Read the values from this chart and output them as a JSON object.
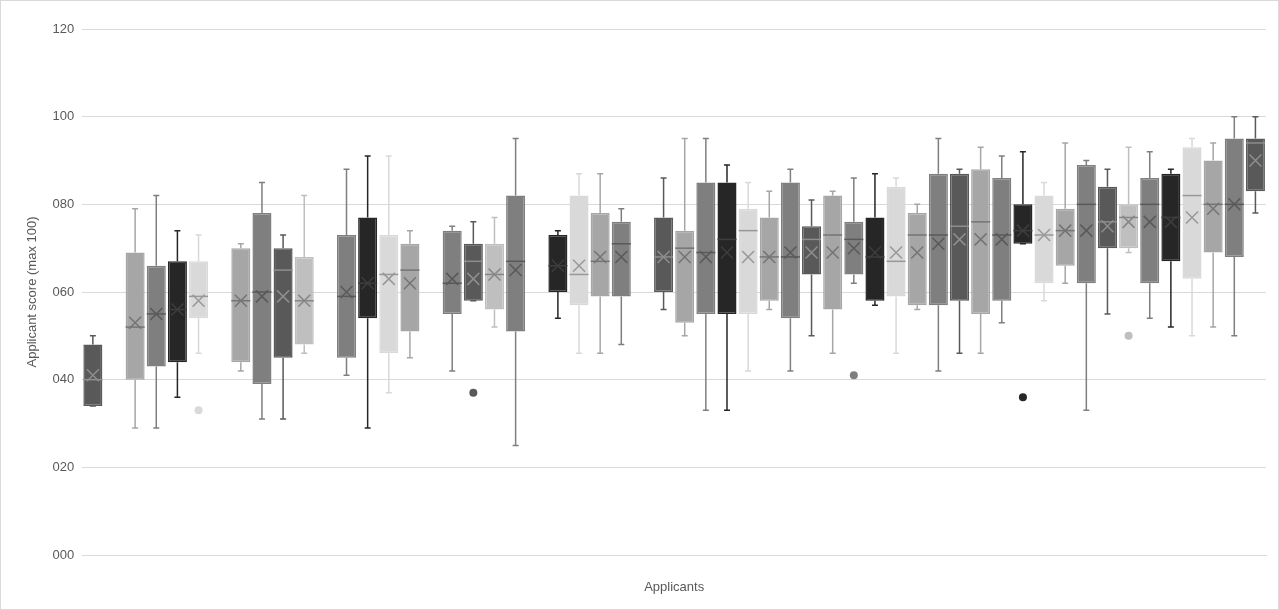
{
  "chart_data": {
    "type": "box",
    "xlabel": "Applicants",
    "ylabel": "Applicant score (max 100)",
    "categories": [
      null,
      null,
      null,
      null,
      null,
      null,
      null,
      null,
      null,
      null,
      null,
      null,
      null,
      null,
      null,
      null,
      null,
      null,
      null,
      null,
      null,
      null,
      null,
      null,
      null,
      null,
      null,
      null,
      null,
      null,
      null,
      null,
      null,
      null,
      null,
      null,
      null,
      null,
      null,
      null,
      null,
      null,
      null,
      null,
      null,
      null,
      null,
      null,
      null,
      null,
      null,
      null,
      null,
      null,
      null,
      null
    ],
    "boxes": [
      {
        "low": 34,
        "q1": 34,
        "median": 40,
        "q3": 48,
        "high": 50,
        "mean": 41
      },
      null,
      {
        "low": 29,
        "q1": 40,
        "median": 52,
        "q3": 69,
        "high": 79,
        "mean": 53
      },
      {
        "low": 29,
        "q1": 43,
        "median": 55,
        "q3": 66,
        "high": 82,
        "mean": 55
      },
      {
        "low": 36,
        "q1": 44,
        "median": 56,
        "q3": 67,
        "high": 74,
        "mean": 56
      },
      {
        "low": 46,
        "q1": 54,
        "median": 59,
        "q3": 67,
        "high": 73,
        "mean": 58,
        "outliers": [
          33
        ]
      },
      null,
      {
        "low": 42,
        "q1": 44,
        "median": 58,
        "q3": 70,
        "high": 71,
        "mean": 58
      },
      {
        "low": 31,
        "q1": 39,
        "median": 60,
        "q3": 78,
        "high": 85,
        "mean": 59
      },
      {
        "low": 31,
        "q1": 45,
        "median": 65,
        "q3": 70,
        "high": 73,
        "mean": 59
      },
      {
        "low": 46,
        "q1": 48,
        "median": 58,
        "q3": 68,
        "high": 82,
        "mean": 58
      },
      null,
      {
        "low": 41,
        "q1": 45,
        "median": 59,
        "q3": 73,
        "high": 88,
        "mean": 60
      },
      {
        "low": 29,
        "q1": 54,
        "median": 62,
        "q3": 77,
        "high": 91,
        "mean": 62
      },
      {
        "low": 37,
        "q1": 46,
        "median": 64,
        "q3": 73,
        "high": 91,
        "mean": 63
      },
      {
        "low": 45,
        "q1": 51,
        "median": 65,
        "q3": 71,
        "high": 74,
        "mean": 62
      },
      null,
      {
        "low": 42,
        "q1": 55,
        "median": 62,
        "q3": 74,
        "high": 75,
        "mean": 63
      },
      {
        "low": 58,
        "q1": 58,
        "median": 67,
        "q3": 71,
        "high": 76,
        "mean": 63,
        "outliers": [
          37
        ]
      },
      {
        "low": 52,
        "q1": 56,
        "median": 64,
        "q3": 71,
        "high": 77,
        "mean": 64
      },
      {
        "low": 25,
        "q1": 51,
        "median": 67,
        "q3": 82,
        "high": 95,
        "mean": 65
      },
      null,
      {
        "low": 54,
        "q1": 60,
        "median": 66,
        "q3": 73,
        "high": 74,
        "mean": 66
      },
      {
        "low": 46,
        "q1": 57,
        "median": 64,
        "q3": 82,
        "high": 87,
        "mean": 66
      },
      {
        "low": 46,
        "q1": 59,
        "median": 67,
        "q3": 78,
        "high": 87,
        "mean": 68
      },
      {
        "low": 48,
        "q1": 59,
        "median": 71,
        "q3": 76,
        "high": 79,
        "mean": 68
      },
      null,
      {
        "low": 56,
        "q1": 60,
        "median": 68,
        "q3": 77,
        "high": 86,
        "mean": 68
      },
      {
        "low": 50,
        "q1": 53,
        "median": 70,
        "q3": 74,
        "high": 95,
        "mean": 68
      },
      {
        "low": 33,
        "q1": 55,
        "median": 69,
        "q3": 85,
        "high": 95,
        "mean": 68
      },
      {
        "low": 33,
        "q1": 55,
        "median": 72,
        "q3": 85,
        "high": 89,
        "mean": 69
      },
      {
        "low": 42,
        "q1": 55,
        "median": 74,
        "q3": 79,
        "high": 85,
        "mean": 68
      },
      {
        "low": 56,
        "q1": 58,
        "median": 68,
        "q3": 77,
        "high": 83,
        "mean": 68
      },
      {
        "low": 42,
        "q1": 54,
        "median": 68,
        "q3": 85,
        "high": 88,
        "mean": 69
      },
      {
        "low": 50,
        "q1": 64,
        "median": 72,
        "q3": 75,
        "high": 81,
        "mean": 69
      },
      {
        "low": 46,
        "q1": 56,
        "median": 73,
        "q3": 82,
        "high": 83,
        "mean": 69
      },
      {
        "low": 62,
        "q1": 64,
        "median": 72,
        "q3": 76,
        "high": 86,
        "mean": 70,
        "outliers": [
          41
        ]
      },
      {
        "low": 57,
        "q1": 58,
        "median": 68,
        "q3": 77,
        "high": 87,
        "mean": 69
      },
      {
        "low": 46,
        "q1": 59,
        "median": 67,
        "q3": 84,
        "high": 86,
        "mean": 69
      },
      {
        "low": 56,
        "q1": 57,
        "median": 73,
        "q3": 78,
        "high": 80,
        "mean": 69
      },
      {
        "low": 42,
        "q1": 57,
        "median": 73,
        "q3": 87,
        "high": 95,
        "mean": 71
      },
      {
        "low": 46,
        "q1": 58,
        "median": 75,
        "q3": 87,
        "high": 88,
        "mean": 72
      },
      {
        "low": 46,
        "q1": 55,
        "median": 76,
        "q3": 88,
        "high": 93,
        "mean": 72
      },
      {
        "low": 53,
        "q1": 58,
        "median": 73,
        "q3": 86,
        "high": 91,
        "mean": 72
      },
      {
        "low": 71,
        "q1": 71,
        "median": 74,
        "q3": 80,
        "high": 92,
        "mean": 74,
        "outliers": [
          36
        ]
      },
      {
        "low": 58,
        "q1": 62,
        "median": 73,
        "q3": 82,
        "high": 85,
        "mean": 73
      },
      {
        "low": 62,
        "q1": 66,
        "median": 74,
        "q3": 79,
        "high": 94,
        "mean": 74
      },
      {
        "low": 33,
        "q1": 62,
        "median": 80,
        "q3": 89,
        "high": 90,
        "mean": 74
      },
      {
        "low": 55,
        "q1": 70,
        "median": 76,
        "q3": 84,
        "high": 88,
        "mean": 75
      },
      {
        "low": 69,
        "q1": 70,
        "median": 77,
        "q3": 80,
        "high": 93,
        "mean": 76,
        "outliers": [
          50
        ]
      },
      {
        "low": 54,
        "q1": 62,
        "median": 80,
        "q3": 86,
        "high": 92,
        "mean": 76
      },
      {
        "low": 52,
        "q1": 67,
        "median": 77,
        "q3": 87,
        "high": 88,
        "mean": 76
      },
      {
        "low": 50,
        "q1": 63,
        "median": 82,
        "q3": 93,
        "high": 95,
        "mean": 77
      },
      {
        "low": 52,
        "q1": 69,
        "median": 80,
        "q3": 90,
        "high": 94,
        "mean": 79
      },
      {
        "low": 50,
        "q1": 68,
        "median": 80,
        "q3": 95,
        "high": 100,
        "mean": 80
      },
      {
        "low": 78,
        "q1": 83,
        "median": 94,
        "q3": 95,
        "high": 100,
        "mean": 90
      }
    ],
    "colors": [
      "#595959",
      null,
      "#a6a6a6",
      "#7f7f7f",
      "#262626",
      "#d9d9d9",
      null,
      "#a6a6a6",
      "#7f7f7f",
      "#595959",
      "#bfbfbf",
      null,
      "#7f7f7f",
      "#262626",
      "#d9d9d9",
      "#a6a6a6",
      null,
      "#7f7f7f",
      "#595959",
      "#bfbfbf",
      "#7f7f7f",
      null,
      "#262626",
      "#d9d9d9",
      "#a6a6a6",
      "#7f7f7f",
      null,
      "#595959",
      "#a6a6a6",
      "#7f7f7f",
      "#262626",
      "#d9d9d9",
      "#a6a6a6",
      "#7f7f7f",
      "#595959",
      "#a6a6a6",
      "#7f7f7f",
      "#262626",
      "#d9d9d9",
      "#a6a6a6",
      "#7f7f7f",
      "#595959",
      "#a6a6a6",
      "#7f7f7f",
      "#262626",
      "#d9d9d9",
      "#a6a6a6",
      "#7f7f7f",
      "#595959",
      "#bfbfbf",
      "#7f7f7f",
      "#262626",
      "#d9d9d9",
      "#a6a6a6",
      "#7f7f7f",
      "#595959"
    ],
    "ylim": [
      0,
      120
    ],
    "yticks": [
      {
        "value": 0,
        "label": "000"
      },
      {
        "value": 20,
        "label": "020"
      },
      {
        "value": 40,
        "label": "040"
      },
      {
        "value": 60,
        "label": "060"
      },
      {
        "value": 80,
        "label": "080"
      },
      {
        "value": 100,
        "label": "100"
      },
      {
        "value": 120,
        "label": "120"
      }
    ],
    "grid": "y",
    "legend": false
  }
}
